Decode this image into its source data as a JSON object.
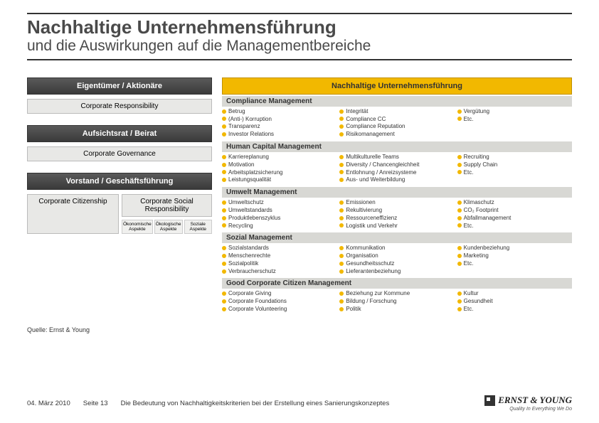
{
  "title": "Nachhaltige Unternehmensführung",
  "subtitle": "und die Auswirkungen auf die Managementbereiche",
  "left": {
    "owners": "Eigentümer / Aktionäre",
    "corpResp": "Corporate Responsibility",
    "board": "Aufsichtsrat / Beirat",
    "gov": "Corporate Governance",
    "mgmt": "Vorstand / Geschäftsführung",
    "cc": "Corporate Citizenship",
    "csr": "Corporate Social Responsibility",
    "aspects": {
      "a": "Ökonomische Aspekte",
      "b": "Ökologische Aspekte",
      "c": "Soziale Aspekte"
    }
  },
  "right": {
    "mainHeader": "Nachhaltige Unternehmensführung",
    "sections": [
      {
        "title": "Compliance Management",
        "cols": [
          [
            "Betrug",
            "(Anti-) Korruption",
            "Transparenz",
            "Investor Relations"
          ],
          [
            "Integrität",
            "Compliance CC",
            "Compliance Reputation",
            "Risikomanagement"
          ],
          [
            "Vergütung",
            "Etc."
          ]
        ]
      },
      {
        "title": "Human Capital Management",
        "cols": [
          [
            "Karriereplanung",
            "Motivation",
            "Arbeitsplatzsicherung",
            "Leistungsqualität"
          ],
          [
            "Multikulturelle Teams",
            "Diversity / Chancengleichheit",
            "Entlohnung / Anreizsysteme",
            "Aus- und Weiterbildung"
          ],
          [
            "Recruiting",
            "Supply Chain",
            "Etc."
          ]
        ]
      },
      {
        "title": "Umwelt Management",
        "cols": [
          [
            "Umweltschutz",
            "Umweltstandards",
            "Produktlebenszyklus",
            "Recycling"
          ],
          [
            "Emissionen",
            "Rekultivierung",
            "Ressourceneffizienz",
            "Logistik und Verkehr"
          ],
          [
            "Klimaschutz",
            "CO₂ Footprint",
            "Abfallmanagement",
            "Etc."
          ]
        ]
      },
      {
        "title": "Sozial Management",
        "cols": [
          [
            "Sozialstandards",
            "Menschenrechte",
            "Sozialpolitik",
            "Verbraucherschutz"
          ],
          [
            "Kommunikation",
            "Organisation",
            "Gesundheitsschutz",
            "Lieferantenbeziehung"
          ],
          [
            "Kundenbeziehung",
            "Marketing",
            "Etc."
          ]
        ]
      },
      {
        "title": "Good Corporate Citizen Management",
        "cols": [
          [
            "Corporate Giving",
            "Corporate Foundations",
            "Corporate Volunteering"
          ],
          [
            "Beziehung zur Kommune",
            "Bildung / Forschung",
            "Politik"
          ],
          [
            "Kultur",
            "Gesundheit",
            "Etc."
          ]
        ]
      }
    ]
  },
  "source": "Quelle: Ernst & Young",
  "footer": {
    "date": "04. März 2010",
    "page": "Seite 13",
    "title": "Die Bedeutung von Nachhaltigkeitskriterien bei der Erstellung eines Sanierungskonzeptes",
    "brand": "ERNST & YOUNG",
    "tag": "Quality In Everything We Do"
  }
}
